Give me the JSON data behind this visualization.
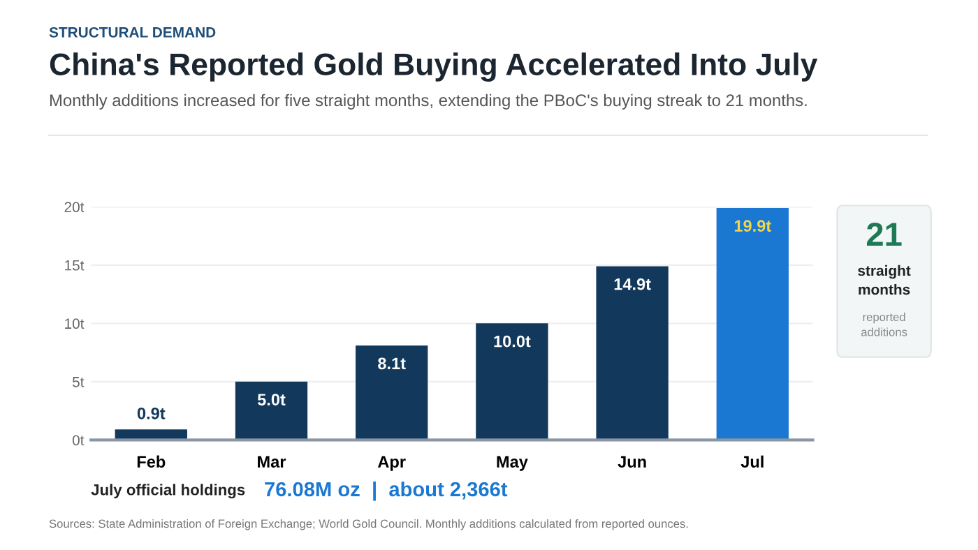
{
  "chart_data": [
    {
      "type": "bar",
      "title": "China's Reported Gold Buying Accelerated Into July",
      "subtitle": "Monthly additions increased for five straight months, extending the PBoC's buying streak to 21 months.",
      "categories": [
        "Feb",
        "Mar",
        "Apr",
        "May",
        "Jun",
        "Jul"
      ],
      "values": [
        0.9,
        5.0,
        8.1,
        10.0,
        14.9,
        19.9
      ],
      "colors": [
        "#12385c",
        "#12385c",
        "#12385c",
        "#12385c",
        "#12385c",
        "#1a78d2"
      ],
      "value_labels": [
        "0.9t",
        "5.0t",
        "8.1t",
        "10.0t",
        "14.9t",
        "19.9t"
      ],
      "ylim": [
        0,
        20
      ],
      "yticks": [
        {
          "value": 0,
          "label": "0t"
        },
        {
          "value": 5,
          "label": "5t"
        },
        {
          "value": 10,
          "label": "10t"
        },
        {
          "value": 15,
          "label": "15t"
        },
        {
          "value": 20,
          "label": "20t"
        }
      ],
      "grid": "y",
      "annotations": [
        "STRUCTURAL DEMAND",
        "July official holdings",
        "76.08M oz  |  about 2,366t",
        "Sources: State Administration of Foreign Exchange; World Gold Council. Monthly additions calculated from reported ounces."
      ]
    },
    {
      "type": "other",
      "annotations": [
        "21",
        "straight\nmonths",
        "reported\nadditions"
      ]
    }
  ]
}
